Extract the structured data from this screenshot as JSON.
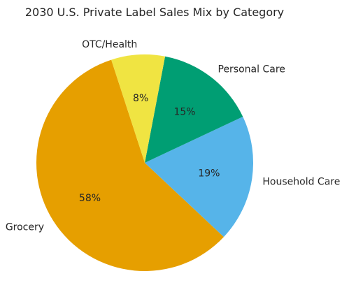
{
  "chart_data": {
    "type": "pie",
    "title": "2030 U.S. Private Label Sales Mix by Category",
    "categories": [
      "Grocery",
      "Household Care",
      "Personal Care",
      "OTC/Health"
    ],
    "values": [
      58,
      19,
      15,
      8
    ],
    "value_labels": [
      "58%",
      "19%",
      "15%",
      "8%"
    ],
    "colors": [
      "#E69F00",
      "#56B4E9",
      "#009E73",
      "#F0E442"
    ],
    "start_angle_deg": 108,
    "direction": "counterclockwise",
    "legend": "none"
  }
}
